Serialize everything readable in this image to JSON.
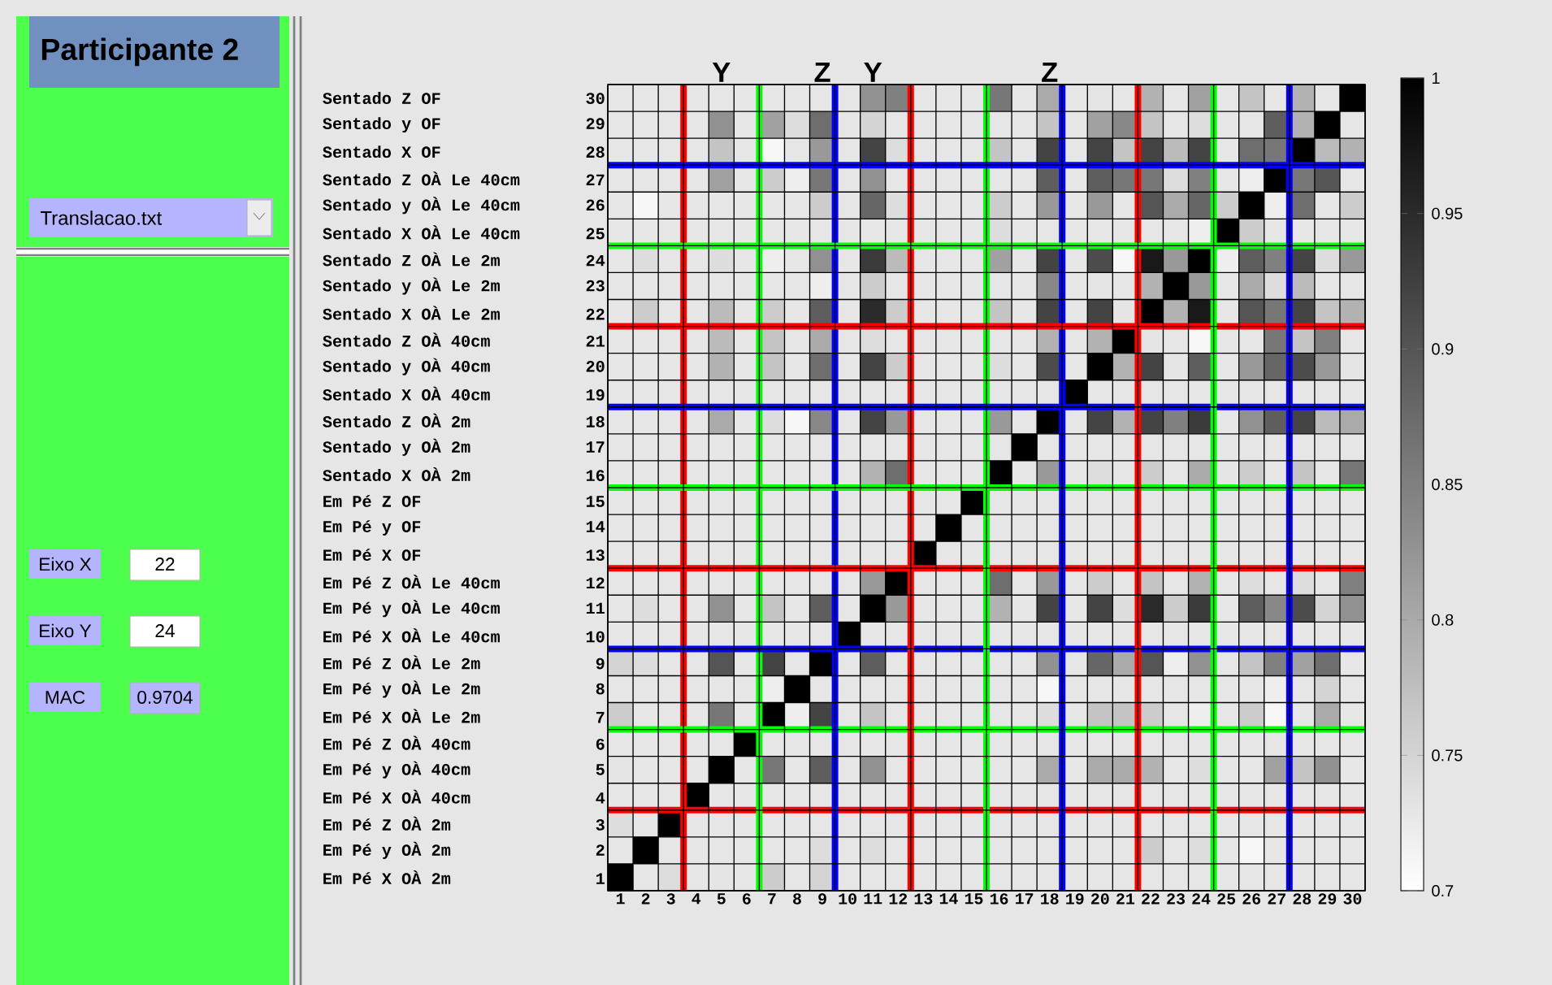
{
  "chart_data": {
    "type": "heatmap",
    "title": "Participante 2",
    "categories": [
      "1",
      "2",
      "3",
      "4",
      "5",
      "6",
      "7",
      "8",
      "9",
      "10",
      "11",
      "12",
      "13",
      "14",
      "15",
      "16",
      "17",
      "18",
      "19",
      "20",
      "21",
      "22",
      "23",
      "24",
      "25",
      "26",
      "27",
      "28",
      "29",
      "30"
    ],
    "y_categories": [
      "Sentado Z OF",
      "Sentado y OF",
      "Sentado X OF",
      "Sentado Z OÀ Le 40cm",
      "Sentado y OÀ Le 40cm",
      "Sentado X OÀ Le 40cm",
      "Sentado Z OÀ Le 2m",
      "Sentado y OÀ Le 2m",
      "Sentado X OÀ Le 2m",
      "Sentado Z OÀ 40cm",
      "Sentado y OÀ 40cm",
      "Sentado X OÀ 40cm",
      "Sentado Z OÀ 2m",
      "Sentado y OÀ 2m",
      "Sentado X OÀ 2m",
      "Em Pé Z OF",
      "Em Pé y OF",
      "Em Pé X OF",
      "Em Pé Z OÀ Le 40cm",
      "Em Pé y OÀ Le 40cm",
      "Em Pé X OÀ Le 40cm",
      "Em Pé Z OÀ Le 2m",
      "Em Pé y OÀ Le 2m",
      "Em Pé X OÀ Le 2m",
      "Em Pé Z OÀ 40cm",
      "Em Pé y OÀ 40cm",
      "Em Pé X OÀ 40cm",
      "Em Pé Z OÀ 2m",
      "Em Pé y OÀ 2m",
      "Em Pé X OÀ 2m"
    ],
    "y2_categories": [
      "30",
      "29",
      "28",
      "27",
      "26",
      "25",
      "24",
      "23",
      "22",
      "21",
      "20",
      "19",
      "18",
      "17",
      "16",
      "15",
      "14",
      "13",
      "12",
      "11",
      "10",
      "9",
      "8",
      "7",
      "6",
      "5",
      "4",
      "3",
      "2",
      "1"
    ],
    "cells": [
      [
        null,
        null,
        null,
        null,
        null,
        null,
        null,
        null,
        null,
        null,
        0.83,
        0.85,
        null,
        null,
        null,
        0.86,
        null,
        0.8,
        null,
        0.73,
        null,
        0.79,
        null,
        0.81,
        null,
        0.77,
        null,
        0.79,
        null,
        1
      ],
      [
        null,
        null,
        null,
        null,
        0.83,
        null,
        0.81,
        0.74,
        0.87,
        null,
        0.75,
        null,
        null,
        null,
        null,
        null,
        null,
        0.77,
        null,
        0.81,
        0.84,
        0.77,
        null,
        0.74,
        null,
        null,
        0.89,
        0.79,
        1,
        null
      ],
      [
        null,
        null,
        null,
        null,
        0.77,
        null,
        0.71,
        null,
        0.82,
        null,
        0.92,
        0.74,
        null,
        null,
        null,
        0.77,
        null,
        0.92,
        null,
        0.92,
        0.77,
        0.92,
        0.78,
        0.92,
        null,
        0.87,
        0.86,
        1,
        0.78,
        0.79
      ],
      [
        null,
        null,
        null,
        null,
        0.81,
        null,
        0.76,
        0.72,
        0.86,
        null,
        0.83,
        null,
        null,
        null,
        null,
        null,
        null,
        0.89,
        null,
        0.89,
        0.86,
        0.86,
        0.74,
        0.85,
        null,
        0.72,
        1,
        0.86,
        0.9,
        null
      ],
      [
        null,
        0.71,
        null,
        null,
        null,
        null,
        null,
        null,
        0.76,
        null,
        0.88,
        0.74,
        null,
        null,
        null,
        0.76,
        null,
        0.82,
        null,
        0.82,
        null,
        0.9,
        0.8,
        0.88,
        0.76,
        1,
        0.72,
        0.87,
        null,
        0.76
      ],
      [
        null,
        null,
        null,
        null,
        null,
        null,
        null,
        null,
        null,
        null,
        null,
        null,
        null,
        null,
        null,
        0.74,
        null,
        null,
        null,
        null,
        null,
        null,
        null,
        0.72,
        1,
        0.76,
        null,
        null,
        null,
        null
      ],
      [
        null,
        0.74,
        null,
        null,
        0.74,
        null,
        0.72,
        null,
        0.83,
        null,
        0.93,
        0.78,
        null,
        null,
        null,
        0.81,
        null,
        0.92,
        null,
        0.91,
        0.71,
        0.97,
        0.82,
        1,
        0.72,
        0.89,
        0.85,
        0.92,
        0.74,
        0.82
      ],
      [
        null,
        null,
        null,
        null,
        null,
        null,
        null,
        null,
        0.72,
        null,
        0.76,
        null,
        null,
        null,
        null,
        null,
        null,
        0.84,
        null,
        0.73,
        null,
        0.79,
        1,
        0.82,
        null,
        0.8,
        0.74,
        0.78,
        null,
        null
      ],
      [
        null,
        0.76,
        null,
        null,
        0.78,
        null,
        0.76,
        null,
        0.89,
        null,
        0.95,
        0.76,
        null,
        null,
        null,
        0.77,
        null,
        0.92,
        null,
        0.92,
        0.73,
        1,
        0.79,
        0.97,
        null,
        0.9,
        0.86,
        0.92,
        0.77,
        0.79
      ],
      [
        null,
        null,
        null,
        null,
        0.78,
        null,
        0.77,
        null,
        0.8,
        null,
        0.74,
        null,
        null,
        null,
        null,
        null,
        null,
        0.79,
        null,
        0.79,
        1,
        0.73,
        null,
        0.71,
        null,
        null,
        0.86,
        0.77,
        0.85,
        null
      ],
      [
        null,
        null,
        null,
        null,
        0.79,
        null,
        0.77,
        null,
        0.87,
        null,
        0.92,
        0.76,
        null,
        null,
        null,
        0.74,
        null,
        0.91,
        null,
        1,
        0.79,
        0.92,
        0.73,
        0.89,
        null,
        0.82,
        0.88,
        0.91,
        0.82,
        0.73
      ],
      [
        null,
        null,
        null,
        null,
        null,
        null,
        null,
        null,
        null,
        null,
        null,
        null,
        null,
        null,
        null,
        null,
        null,
        null,
        1,
        null,
        null,
        null,
        null,
        null,
        null,
        null,
        null,
        null,
        null,
        null
      ],
      [
        null,
        null,
        null,
        null,
        0.8,
        null,
        0.74,
        0.71,
        0.84,
        null,
        0.92,
        0.82,
        null,
        null,
        null,
        0.82,
        null,
        1,
        null,
        0.92,
        0.79,
        0.92,
        0.85,
        0.93,
        null,
        0.83,
        0.89,
        0.92,
        0.78,
        0.8
      ],
      [
        null,
        null,
        null,
        null,
        null,
        null,
        null,
        null,
        null,
        null,
        null,
        null,
        null,
        null,
        null,
        null,
        1,
        null,
        null,
        null,
        null,
        null,
        null,
        null,
        null,
        null,
        null,
        null,
        null,
        null
      ],
      [
        null,
        null,
        null,
        null,
        null,
        null,
        null,
        null,
        null,
        null,
        0.79,
        0.87,
        null,
        null,
        null,
        1,
        null,
        0.82,
        null,
        0.74,
        null,
        0.76,
        null,
        0.8,
        0.73,
        0.76,
        null,
        0.77,
        null,
        0.86
      ],
      [
        null,
        null,
        null,
        null,
        null,
        null,
        null,
        null,
        null,
        null,
        null,
        null,
        null,
        null,
        1,
        null,
        null,
        null,
        null,
        null,
        null,
        null,
        null,
        null,
        null,
        null,
        null,
        null,
        null,
        null
      ],
      [
        null,
        null,
        null,
        null,
        null,
        null,
        null,
        null,
        null,
        null,
        null,
        null,
        null,
        1,
        null,
        null,
        null,
        null,
        null,
        null,
        null,
        null,
        null,
        null,
        null,
        null,
        null,
        null,
        null,
        null
      ],
      [
        null,
        null,
        null,
        null,
        null,
        null,
        null,
        null,
        null,
        null,
        null,
        null,
        1,
        null,
        null,
        null,
        null,
        null,
        null,
        null,
        null,
        null,
        null,
        null,
        null,
        null,
        null,
        null,
        null,
        null
      ],
      [
        null,
        null,
        null,
        null,
        null,
        null,
        null,
        null,
        null,
        null,
        0.82,
        1,
        null,
        null,
        null,
        0.87,
        null,
        0.82,
        null,
        0.76,
        null,
        0.77,
        null,
        0.79,
        null,
        0.74,
        null,
        0.74,
        null,
        0.85
      ],
      [
        null,
        0.74,
        null,
        null,
        0.83,
        null,
        0.77,
        null,
        0.89,
        null,
        1,
        0.82,
        null,
        null,
        null,
        0.79,
        null,
        0.92,
        null,
        0.92,
        0.74,
        0.95,
        0.76,
        0.93,
        null,
        0.89,
        0.84,
        0.91,
        0.75,
        0.83
      ],
      [
        null,
        null,
        null,
        null,
        null,
        null,
        null,
        null,
        null,
        1,
        null,
        null,
        null,
        null,
        null,
        null,
        null,
        null,
        null,
        null,
        null,
        null,
        null,
        null,
        null,
        null,
        null,
        null,
        null,
        null
      ],
      [
        0.75,
        0.74,
        null,
        null,
        0.9,
        null,
        0.92,
        null,
        1,
        null,
        0.89,
        null,
        null,
        null,
        null,
        null,
        null,
        0.83,
        null,
        0.88,
        0.8,
        0.9,
        0.72,
        0.83,
        null,
        0.77,
        0.85,
        0.81,
        0.87,
        null
      ],
      [
        null,
        null,
        null,
        null,
        null,
        null,
        0.72,
        1,
        null,
        null,
        null,
        null,
        null,
        null,
        null,
        null,
        null,
        0.71,
        null,
        null,
        null,
        null,
        null,
        null,
        null,
        null,
        0.72,
        null,
        0.75,
        null
      ],
      [
        0.76,
        null,
        null,
        null,
        0.86,
        null,
        1,
        0.72,
        0.92,
        null,
        0.77,
        null,
        null,
        null,
        null,
        null,
        null,
        0.74,
        null,
        0.77,
        0.77,
        0.76,
        null,
        0.72,
        null,
        0.76,
        0.71,
        null,
        0.8,
        null
      ],
      [
        null,
        null,
        null,
        null,
        null,
        1,
        null,
        null,
        null,
        null,
        null,
        null,
        null,
        null,
        null,
        null,
        null,
        null,
        null,
        null,
        null,
        null,
        null,
        null,
        null,
        null,
        null,
        null,
        null,
        null
      ],
      [
        0.73,
        null,
        null,
        null,
        1,
        null,
        0.86,
        null,
        0.89,
        null,
        0.83,
        null,
        null,
        null,
        null,
        null,
        null,
        0.8,
        null,
        0.8,
        0.8,
        0.79,
        null,
        0.74,
        null,
        null,
        0.81,
        0.77,
        0.83,
        null
      ],
      [
        null,
        null,
        null,
        1,
        null,
        null,
        null,
        null,
        null,
        null,
        null,
        null,
        null,
        null,
        null,
        null,
        null,
        null,
        null,
        null,
        null,
        null,
        null,
        null,
        null,
        null,
        null,
        null,
        null,
        null
      ],
      [
        0.74,
        null,
        1,
        null,
        null,
        null,
        null,
        null,
        null,
        null,
        null,
        null,
        null,
        null,
        null,
        null,
        null,
        null,
        null,
        null,
        null,
        null,
        null,
        null,
        null,
        null,
        null,
        null,
        null,
        null
      ],
      [
        null,
        1,
        null,
        null,
        null,
        null,
        null,
        null,
        0.74,
        null,
        0.74,
        null,
        null,
        null,
        null,
        null,
        null,
        null,
        null,
        null,
        null,
        0.76,
        null,
        0.74,
        null,
        0.71,
        null,
        null,
        null,
        null
      ],
      [
        1,
        null,
        0.74,
        null,
        0.73,
        null,
        0.76,
        null,
        0.75,
        null,
        null,
        null,
        null,
        null,
        null,
        null,
        null,
        null,
        null,
        null,
        null,
        null,
        null,
        null,
        null,
        null,
        null,
        null,
        null,
        null
      ]
    ],
    "clim": [
      0.7,
      1
    ],
    "cticks": [
      0.7,
      0.75,
      0.8,
      0.85,
      0.9,
      0.95,
      1
    ],
    "annotations": [
      "Y",
      "Z",
      "Y",
      "Z",
      "Translacao.txt",
      "Eixo X",
      "22",
      "Eixo Y",
      "24",
      "MAC",
      "0.9704"
    ]
  }
}
